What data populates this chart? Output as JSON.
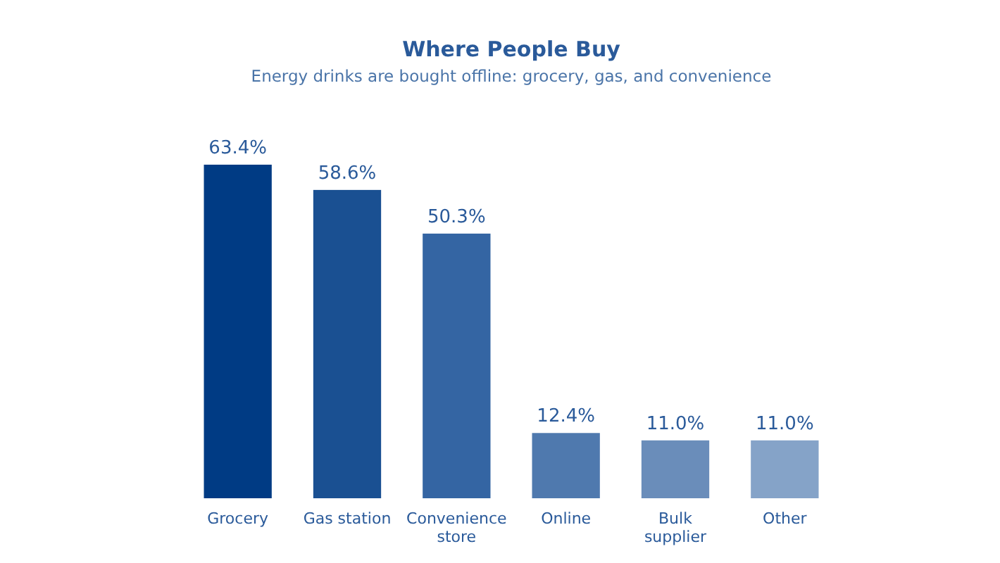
{
  "chart_data": {
    "type": "bar",
    "title": "Where People Buy",
    "subtitle": "Energy drinks are bought offline: grocery, gas, and convenience",
    "categories": [
      "Grocery",
      "Gas station",
      "Convenience store",
      "Online",
      "Bulk supplier",
      "Other"
    ],
    "values": [
      63.4,
      58.6,
      50.3,
      12.4,
      11.0,
      11.0
    ],
    "colors": [
      "#003b84",
      "#1a5092",
      "#3465a3",
      "#4f79ae",
      "#6a8dba",
      "#85a3c8"
    ],
    "value_labels": [
      "63.4%",
      "58.6%",
      "50.3%",
      "12.4%",
      "11.0%",
      "11.0%"
    ]
  }
}
